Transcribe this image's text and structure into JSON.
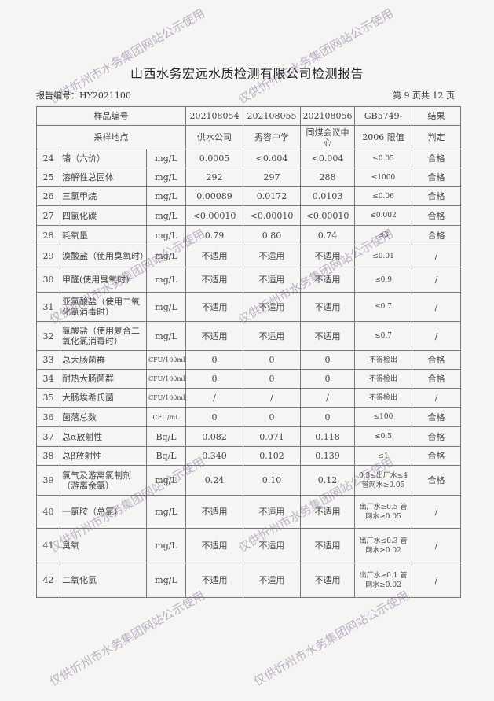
{
  "title": "山西水务宏远水质检测有限公司检测报告",
  "report_no": "报告编号：HY2021100",
  "page_no": "第 9 页共 12 页",
  "watermark": "仅供忻州市水务集团网站公示使用",
  "header": {
    "sample_no_label": "样品编号",
    "location_label": "采样地点",
    "samples": [
      "202108054",
      "202108055",
      "202108056"
    ],
    "locations": [
      "供水公司",
      "秀容中学",
      "同煤会议中心"
    ],
    "limit_label_1": "GB5749-",
    "limit_label_2": "2006 限值",
    "result_label_1": "结果",
    "result_label_2": "判定"
  },
  "rows": [
    {
      "no": "24",
      "name": "铬（六价）",
      "unit": "mg/L",
      "v1": "0.0005",
      "v2": "<0.004",
      "v3": "<0.004",
      "limit": "≤0.05",
      "result": "合格"
    },
    {
      "no": "25",
      "name": "溶解性总固体",
      "unit": "mg/L",
      "v1": "292",
      "v2": "297",
      "v3": "288",
      "limit": "≤1000",
      "result": "合格"
    },
    {
      "no": "26",
      "name": "三氯甲烷",
      "unit": "mg/L",
      "v1": "0.00089",
      "v2": "0.0172",
      "v3": "0.0103",
      "limit": "≤0.06",
      "result": "合格"
    },
    {
      "no": "27",
      "name": "四氯化碳",
      "unit": "mg/L",
      "v1": "<0.00010",
      "v2": "<0.00010",
      "v3": "<0.00010",
      "limit": "≤0.002",
      "result": "合格"
    },
    {
      "no": "28",
      "name": "耗氧量",
      "unit": "mg/L",
      "v1": "0.79",
      "v2": "0.80",
      "v3": "0.74",
      "limit": "≤3",
      "result": "合格"
    },
    {
      "no": "29",
      "name": "溴酸盐（使用臭氧时）",
      "unit": "mg/L",
      "v1": "不适用",
      "v2": "不适用",
      "v3": "不适用",
      "limit": "≤0.01",
      "result": "/"
    },
    {
      "no": "30",
      "name": "甲醛(使用臭氧时)",
      "unit": "mg/L",
      "v1": "不适用",
      "v2": "不适用",
      "v3": "不适用",
      "limit": "≤0.9",
      "result": "/"
    },
    {
      "no": "31",
      "name": "亚氯酸盐（使用二氧化氯消毒时）",
      "unit": "mg/L",
      "v1": "不适用",
      "v2": "不适用",
      "v3": "不适用",
      "limit": "≤0.7",
      "result": "/"
    },
    {
      "no": "32",
      "name": "氯酸盐（使用复合二氧化氯消毒时）",
      "unit": "mg/L",
      "v1": "不适用",
      "v2": "不适用",
      "v3": "不适用",
      "limit": "≤0.7",
      "result": "/"
    },
    {
      "no": "33",
      "name": "总大肠菌群",
      "unit": "CFU/100ml",
      "v1": "0",
      "v2": "0",
      "v3": "0",
      "limit": "不得检出",
      "result": "合格"
    },
    {
      "no": "34",
      "name": "耐热大肠菌群",
      "unit": "CFU/100ml",
      "v1": "0",
      "v2": "0",
      "v3": "0",
      "limit": "不得检出",
      "result": "合格"
    },
    {
      "no": "35",
      "name": "大肠埃希氏菌",
      "unit": "CFU/100ml",
      "v1": "/",
      "v2": "/",
      "v3": "/",
      "limit": "不得检出",
      "result": "/"
    },
    {
      "no": "36",
      "name": "菌落总数",
      "unit": "CFU/mL",
      "v1": "0",
      "v2": "0",
      "v3": "0",
      "limit": "≤100",
      "result": "合格"
    },
    {
      "no": "37",
      "name": "总α放射性",
      "unit": "Bq/L",
      "v1": "0.082",
      "v2": "0.071",
      "v3": "0.118",
      "limit": "≤0.5",
      "result": "合格"
    },
    {
      "no": "38",
      "name": "总β放射性",
      "unit": "Bq/L",
      "v1": "0.340",
      "v2": "0.102",
      "v3": "0.139",
      "limit": "≤1",
      "result": "合格"
    },
    {
      "no": "39",
      "name": "氯气及游离氯制剂（游离余氯）",
      "unit": "mg/L",
      "v1": "0.24",
      "v2": "0.10",
      "v3": "0.12",
      "limit": "0.3≤出厂水≤4 管网水≥0.05",
      "result": "合格"
    },
    {
      "no": "40",
      "name": "一氯胺（总氯）",
      "unit": "mg/L",
      "v1": "不适用",
      "v2": "不适用",
      "v3": "不适用",
      "limit": "出厂水≥0.5 管网水≥0.05",
      "result": "/"
    },
    {
      "no": "41",
      "name": "臭氧",
      "unit": "mg/L",
      "v1": "不适用",
      "v2": "不适用",
      "v3": "不适用",
      "limit": "出厂水≤0.3 管网水≥0.02",
      "result": "/"
    },
    {
      "no": "42",
      "name": "二氧化氯",
      "unit": "mg/L",
      "v1": "不适用",
      "v2": "不适用",
      "v3": "不适用",
      "limit": "出厂水≥0.1 管网水≥0.02",
      "result": "/"
    }
  ]
}
